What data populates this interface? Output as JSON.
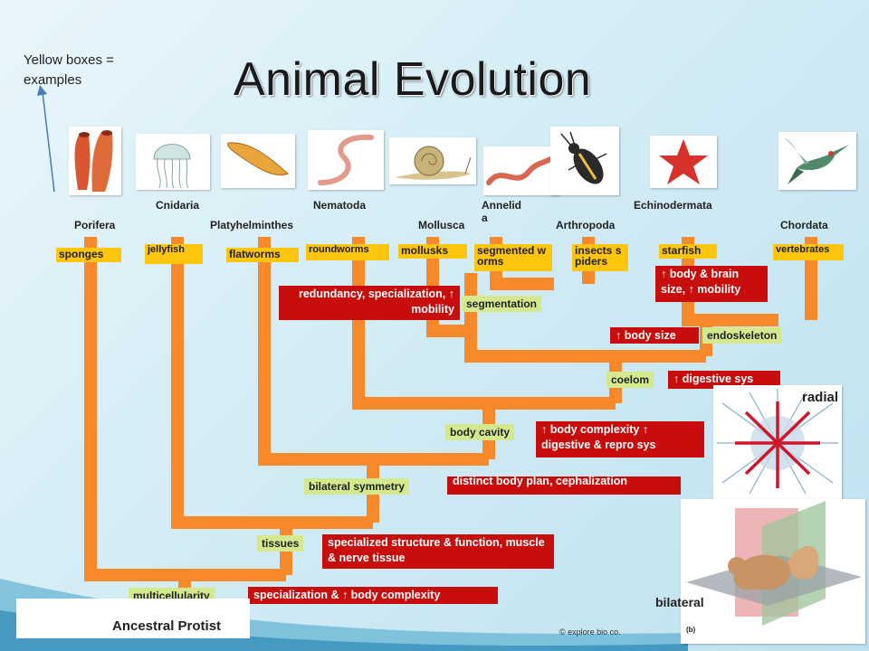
{
  "title": "Animal Evolution",
  "note": [
    "Yellow boxes =",
    "examples"
  ],
  "phyla": {
    "porifera": "Porifera",
    "cnidaria": "Cnidaria",
    "platyhelminthes": "Platyhelminthes",
    "nematoda": "Nematoda",
    "mollusca": "Mollusca",
    "annelida": "Annelida",
    "arthropoda": "Arthropoda",
    "echinodermata": "Echinodermata",
    "chordata": "Chordata"
  },
  "examples": {
    "sponges": "sponges",
    "jellyfish": "jellyfish",
    "flatworms": "flatworms",
    "roundworms": "roundworms",
    "mollusks": "mollusks",
    "segmented_worms": "segmented worms",
    "insects_spiders": "insects spiders",
    "starfish": "starfish",
    "vertebrates": "vertebrates"
  },
  "traits": {
    "multicellularity": "multicellularity",
    "tissues": "tissues",
    "bilateral_symmetry": "bilateral symmetry",
    "body_cavity": "body cavity",
    "coelom": "coelom",
    "segmentation": "segmentation",
    "body_size": "↑ body size",
    "endoskeleton": "endoskeleton"
  },
  "advantages": {
    "specialization": "specialization & ↑ body complexity",
    "specialized_structure": "specialized structure & function, muscle & nerve tissue",
    "distinct_body_plan": "distinct body plan, cephalization",
    "body_complexity": "↑ body complexity ↑ digestive & repro sys",
    "digestive_sys": "↑ digestive sys",
    "redundancy": "redundancy, specialization, ↑ mobility",
    "brain_size": "↑ body & brain size, ↑ mobility"
  },
  "ancestral": "Ancestral Protist",
  "copyright": "© explore bio co.",
  "radial_label": "radial",
  "bilateral_label": "bilateral",
  "figure_label": "(b)",
  "colors": {
    "branch": "#f7892a",
    "example_box": "#fdc50e",
    "trait_box": "#d4e98e",
    "advantage_box": "#c80d0d"
  },
  "icons": [
    "sponge",
    "jellyfish",
    "flatworm",
    "roundworm",
    "snail",
    "earthworm",
    "beetle",
    "starfish",
    "hummingbird",
    "sea-urchin",
    "squirrel-planes"
  ]
}
